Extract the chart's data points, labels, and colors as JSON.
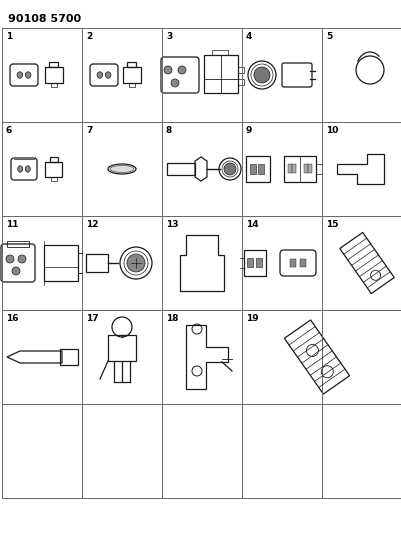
{
  "title": "90108 5700",
  "background_color": "#ffffff",
  "grid_color": "#666666",
  "text_color": "#000000",
  "figsize": [
    4.02,
    5.33
  ],
  "dpi": 100,
  "num_label_fontsize": 6.5,
  "title_fontsize": 8
}
